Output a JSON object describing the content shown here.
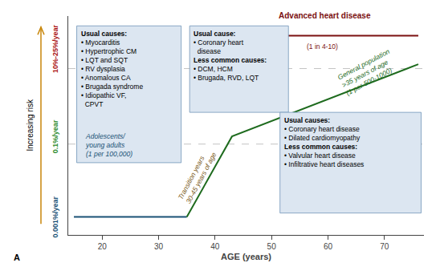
{
  "chart_data": {
    "type": "line",
    "xlabel": "AGE (years)",
    "ylabel": "Increasing risk",
    "xlim": [
      14,
      77
    ],
    "xticks": [
      20,
      30,
      40,
      50,
      60,
      70
    ],
    "ylim": [
      0,
      10
    ],
    "tick_labels": "x",
    "grid": false,
    "series": [
      {
        "x": [
          15,
          35
        ],
        "values": [
          0.82,
          0.82
        ],
        "color": "#1a5276"
      },
      {
        "x": [
          35,
          43,
          76
        ],
        "values": [
          0.82,
          4.5,
          7.8
        ],
        "color": "#1e6b1e"
      },
      {
        "x": [
          49,
          76
        ],
        "values": [
          9.1,
          9.1
        ],
        "color": "#7b1010"
      }
    ],
    "hlines": [
      4.15,
      7.6
    ],
    "hline_color": "#aaaaaa",
    "hline_style": "dashed",
    "risk_labels": [
      {
        "text": "0.001%/year",
        "y": 0.82,
        "color": "#1a5276"
      },
      {
        "text": "0.1%/year",
        "y": 4.5,
        "color": "#2e8b2e"
      },
      {
        "text": "10%-25%/year",
        "y": 8.5,
        "color": "#aa1111"
      }
    ],
    "arrow_color": "#c8860a",
    "boxes": [
      {
        "title": "Usual causes:",
        "body": "• Myocarditis\n• Hypertrophic CM\n• LQT and SQT\n• RV dysplasia\n• Anomalous CA\n• Brugada syndrome\n• Idiopathic VF,\n  CPVT",
        "sub_label": "Adolescents/\nyoung adults\n(1 per 100,000)",
        "sub_label_color": "#1a5276",
        "color": "#dce6f1",
        "edge_color": "#7094b7"
      },
      {
        "title": "Usual cause:",
        "body": "• Coronary heart\n  disease",
        "title2": "Less common causes:",
        "body2": "• DCM, HCM\n• Brugada, RVD, LQT",
        "color": "#dce6f1",
        "edge_color": "#7094b7"
      },
      {
        "title": "Usual causes:",
        "body": "• Coronary heart disease\n• Dilated cardiomyopathy",
        "title2": "Less common causes:",
        "body2": "• Valvular heart disease\n• Infiltrative heart diseases",
        "color": "#dce6f1",
        "edge_color": "#7094b7"
      }
    ],
    "annotations": [
      {
        "text": "Advanced heart disease",
        "color": "#7b1010"
      },
      {
        "text": "(1 in 4-10)",
        "color": "#7b1010"
      },
      {
        "text": "General population\n>35 years of age\n(1 per 500-1000)",
        "color": "#1e6b1e"
      },
      {
        "text": "Transition years\n30-45 years of age",
        "color": "#7b5a1a"
      }
    ],
    "panel_label": "A"
  }
}
